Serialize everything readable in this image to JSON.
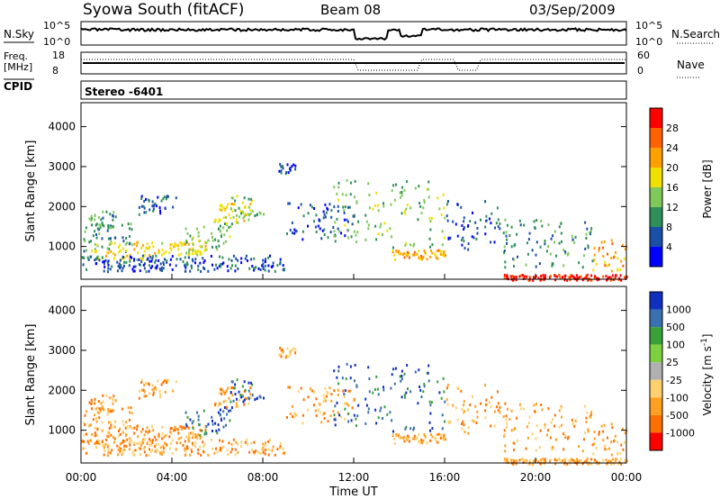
{
  "header": {
    "station": "Syowa South (fitACF)",
    "beam": "Beam 08",
    "date": "03/Sep/2009"
  },
  "top_panels": {
    "nsky_label": "N.Sky",
    "nsky_ticks": [
      "10^5",
      "10^0"
    ],
    "nsearch_ticks": [
      "10^5",
      "10^0"
    ],
    "nsearch_label": "N.Search",
    "freq_label_1": "Freq.",
    "freq_label_2": "[MHz]",
    "freq_ticks": [
      "18",
      "8"
    ],
    "nave_ticks": [
      "60",
      "0"
    ],
    "nave_label": "Nave",
    "cpid_label": "CPID",
    "cpid_value": "Stereo -6401"
  },
  "colors": {
    "power": [
      "#0000ff",
      "#1a4fa8",
      "#2e8f5a",
      "#7fc95a",
      "#f0e000",
      "#ffa000",
      "#ff6000",
      "#ff0000"
    ],
    "velocity": [
      "#1030c0",
      "#3a70b0",
      "#3aa03a",
      "#7fd040",
      "#b0b0b0",
      "#ffd070",
      "#ffa020",
      "#ff7000",
      "#ff0000"
    ]
  },
  "chart_data": [
    {
      "type": "heatmap",
      "title": "Power",
      "ylabel": "Slant Range [km]",
      "xlabel": "",
      "x_ticks": [
        "00:00",
        "04:00",
        "08:00",
        "12:00",
        "16:00",
        "20:00",
        "00:00"
      ],
      "xlim_hours": [
        0,
        24
      ],
      "y_ticks": [
        1000,
        2000,
        3000,
        4000
      ],
      "ylim": [
        180,
        4600
      ],
      "colorbar": {
        "label": "Power [dB]",
        "ticks": [
          "4",
          "8",
          "12",
          "16",
          "20",
          "24",
          "28"
        ]
      }
    },
    {
      "type": "heatmap",
      "title": "Velocity",
      "ylabel": "Slant Range [km]",
      "xlabel": "Time UT",
      "x_ticks": [
        "00:00",
        "04:00",
        "08:00",
        "12:00",
        "16:00",
        "20:00",
        "00:00"
      ],
      "xlim_hours": [
        0,
        24
      ],
      "y_ticks": [
        1000,
        2000,
        3000,
        4000
      ],
      "ylim": [
        180,
        4600
      ],
      "colorbar": {
        "label": "Velocity [m s",
        "label_sup": "-1",
        "label_end": "]",
        "ticks": [
          "1000",
          "500",
          "100",
          "25",
          "-25",
          "-100",
          "-500",
          "-1000"
        ]
      }
    }
  ],
  "regions": [
    {
      "t0": 0.1,
      "t1": 2.2,
      "r0": 900,
      "r1": 1600,
      "c": 2
    },
    {
      "t0": 0.3,
      "t1": 1.6,
      "r0": 1500,
      "r1": 1900,
      "c": 2
    },
    {
      "t0": 0.4,
      "t1": 3.0,
      "r0": 700,
      "r1": 1150,
      "c": 4
    },
    {
      "t0": 2.5,
      "t1": 4.2,
      "r0": 1800,
      "r1": 2300,
      "c": 1
    },
    {
      "t0": 3.0,
      "t1": 5.5,
      "r0": 800,
      "r1": 1150,
      "c": 4
    },
    {
      "t0": 4.5,
      "t1": 6.7,
      "r0": 900,
      "r1": 1700,
      "c": 3
    },
    {
      "t0": 5.8,
      "t1": 7.5,
      "r0": 1600,
      "r1": 2100,
      "c": 4
    },
    {
      "t0": 6.5,
      "t1": 8.0,
      "r0": 1700,
      "r1": 2300,
      "c": 3
    },
    {
      "t0": 0.0,
      "t1": 9.0,
      "r0": 400,
      "r1": 800,
      "c": 1
    },
    {
      "t0": 8.6,
      "t1": 9.4,
      "r0": 2850,
      "r1": 3100,
      "c": 1
    },
    {
      "t0": 9.0,
      "t1": 12.0,
      "r0": 1200,
      "r1": 2200,
      "c": 1
    },
    {
      "t0": 11.0,
      "t1": 16.0,
      "r0": 1000,
      "r1": 2700,
      "c": 3
    },
    {
      "t0": 13.5,
      "t1": 16.0,
      "r0": 700,
      "r1": 950,
      "c": 5
    },
    {
      "t0": 16.0,
      "t1": 18.5,
      "r0": 900,
      "r1": 2200,
      "c": 1
    },
    {
      "t0": 18.5,
      "t1": 22.5,
      "r0": 500,
      "r1": 1700,
      "c": 2
    },
    {
      "t0": 22.5,
      "t1": 24.0,
      "r0": 400,
      "r1": 1200,
      "c": 5
    },
    {
      "t0": 18.5,
      "t1": 24.0,
      "r0": 180,
      "r1": 320,
      "c": 7
    }
  ]
}
